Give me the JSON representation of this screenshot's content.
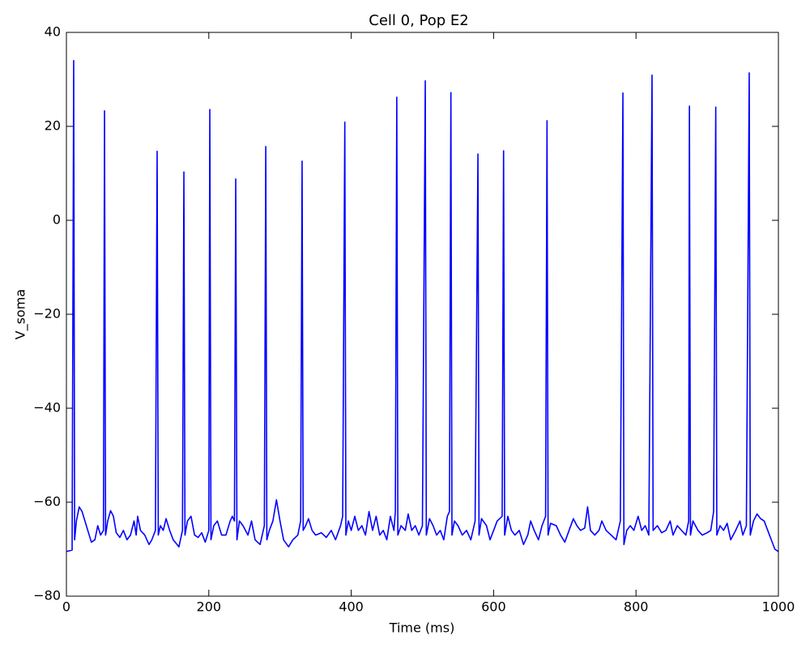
{
  "chart_data": {
    "type": "line",
    "title": "Cell 0, Pop E2",
    "xlabel": "Time (ms)",
    "ylabel": "V_soma",
    "xlim": [
      0,
      1000
    ],
    "ylim": [
      -80,
      40
    ],
    "xticks": [
      0,
      200,
      400,
      600,
      800,
      1000
    ],
    "yticks": [
      {
        "value": -80,
        "label": "−80"
      },
      {
        "value": -60,
        "label": "−60"
      },
      {
        "value": -40,
        "label": "−40"
      },
      {
        "value": -20,
        "label": "−20"
      },
      0,
      20,
      40
    ],
    "grid": false,
    "series": [
      {
        "color": "#0000ff",
        "x": [
          0,
          8,
          10.2,
          11.5,
          14,
          18,
          22,
          30,
          35,
          40,
          44,
          48,
          52,
          53.5,
          55,
          58,
          62,
          66,
          70,
          75,
          80,
          85,
          90,
          95,
          98,
          100,
          104,
          110,
          116,
          120,
          125,
          127.4,
          129,
          132,
          136,
          140,
          145,
          150,
          158,
          163,
          165,
          166.5,
          170,
          175,
          180,
          185,
          190,
          195,
          200,
          201.4,
          203,
          207,
          212,
          218,
          224,
          230,
          233,
          236,
          237.8,
          239.5,
          243,
          248,
          255,
          260,
          265,
          272,
          278,
          280,
          281.5,
          285,
          290,
          295,
          300,
          305,
          312,
          318,
          325,
          329,
          331,
          332.5,
          336,
          340,
          345,
          350,
          358,
          365,
          372,
          378,
          385,
          388,
          391,
          392.5,
          396,
          400,
          405,
          410,
          415,
          420,
          425,
          430,
          435,
          440,
          445,
          450,
          455,
          460,
          462,
          464,
          465.5,
          470,
          476,
          480,
          485,
          490,
          495,
          500,
          504,
          505.5,
          510,
          515,
          520,
          525,
          530,
          535,
          538,
          540,
          541.5,
          545,
          550,
          556,
          562,
          568,
          574,
          578,
          579.5,
          583,
          590,
          595,
          600,
          605,
          612,
          614,
          615.5,
          620,
          625,
          630,
          636,
          642,
          648,
          652,
          657,
          663,
          668,
          673,
          675,
          676.5,
          680,
          688,
          694,
          700,
          706,
          712,
          717,
          722,
          728,
          732,
          736,
          742,
          748,
          752,
          758,
          765,
          772,
          778,
          781.6,
          783,
          787,
          792,
          797,
          803,
          808,
          813,
          818,
          822.5,
          824,
          830,
          836,
          842,
          848,
          852,
          858,
          864,
          870,
          874,
          875,
          876.5,
          880,
          887,
          893,
          900,
          905,
          909,
          912,
          913.5,
          918,
          923,
          928,
          933,
          940,
          946,
          950,
          955,
          959,
          960.5,
          965,
          970,
          975,
          980,
          985,
          990,
          995,
          1000
        ],
        "values": [
          -70.5,
          -70.2,
          34,
          -68,
          -64,
          -61,
          -62,
          -66,
          -68.5,
          -68,
          -65,
          -67,
          -66,
          23.3,
          -67,
          -64,
          -61.8,
          -63,
          -66.5,
          -67.5,
          -66,
          -68,
          -67,
          -64,
          -67,
          -63,
          -66,
          -67,
          -69,
          -68,
          -66,
          14.7,
          -67,
          -65,
          -66,
          -63.5,
          -66,
          -68,
          -69.5,
          -66,
          10.3,
          -67,
          -64,
          -63,
          -67,
          -67.5,
          -66.5,
          -68.5,
          -66,
          23.6,
          -68,
          -65,
          -64,
          -67,
          -67,
          -64,
          -63,
          -64,
          8.8,
          -68,
          -64,
          -65,
          -67,
          -64,
          -68,
          -69,
          -65,
          15.7,
          -68,
          -66,
          -64,
          -59.5,
          -64,
          -68,
          -69.5,
          -68,
          -67,
          -64,
          12.6,
          -66,
          -65,
          -63.5,
          -66,
          -67,
          -66.5,
          -67.5,
          -66,
          -68,
          -65,
          -63,
          20.9,
          -67,
          -64,
          -66,
          -63,
          -66,
          -65,
          -67,
          -62,
          -66,
          -63,
          -67,
          -66,
          -68,
          -63,
          -66,
          -62,
          26.2,
          -67,
          -65,
          -66,
          -62.5,
          -66,
          -65,
          -67,
          -65,
          29.7,
          -67,
          -63.5,
          -65,
          -67,
          -66,
          -68,
          -63,
          -62,
          27.2,
          -67,
          -64,
          -65,
          -67,
          -66,
          -68,
          -64,
          14.1,
          -67,
          -63.5,
          -65,
          -68,
          -66,
          -64,
          -63,
          14.8,
          -67,
          -63,
          -66,
          -67,
          -66,
          -69,
          -67,
          -64,
          -66,
          -68,
          -65,
          -63,
          21.2,
          -67,
          -64.5,
          -65,
          -67,
          -68.5,
          -66,
          -63.5,
          -65,
          -66,
          -65.5,
          -61,
          -66,
          -67,
          -66,
          -64,
          -66,
          -67,
          -68,
          -64,
          27.1,
          -69,
          -66,
          -65,
          -66,
          -63,
          -66,
          -65,
          -67,
          30.9,
          -66,
          -65,
          -66.5,
          -66,
          -64,
          -67,
          -65,
          -66,
          -67,
          -64,
          24.3,
          -67,
          -64,
          -66,
          -67,
          -66.5,
          -66,
          -62,
          24.1,
          -67,
          -65,
          -66,
          -64.5,
          -68,
          -66,
          -64,
          -67,
          -65,
          31.4,
          -67,
          -64,
          -62.5,
          -63.5,
          -64,
          -66,
          -68,
          -70,
          -70.5
        ]
      }
    ]
  }
}
